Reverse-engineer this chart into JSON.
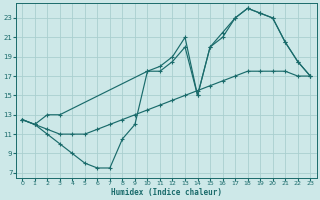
{
  "xlabel": "Humidex (Indice chaleur)",
  "xlim": [
    -0.5,
    23.5
  ],
  "ylim": [
    6.5,
    24.5
  ],
  "yticks": [
    7,
    9,
    11,
    13,
    15,
    17,
    19,
    21,
    23
  ],
  "xticks": [
    0,
    1,
    2,
    3,
    4,
    5,
    6,
    7,
    8,
    9,
    10,
    11,
    12,
    13,
    14,
    15,
    16,
    17,
    18,
    19,
    20,
    21,
    22,
    23
  ],
  "bg_color": "#cde8e8",
  "grid_color": "#aacfcf",
  "line_color": "#1a6b6b",
  "line_upper_x": [
    0,
    1,
    2,
    3,
    10,
    11,
    12,
    13,
    14,
    15,
    16,
    17,
    18,
    19,
    20,
    21,
    22,
    23
  ],
  "line_upper_y": [
    12.5,
    12,
    13,
    13,
    17.5,
    18,
    19,
    21,
    15,
    20,
    21,
    23,
    24,
    23.5,
    23,
    20.5,
    18.5,
    17
  ],
  "line_lower_x": [
    0,
    1,
    2,
    3,
    4,
    5,
    6,
    7,
    8,
    9,
    10,
    11,
    12,
    13,
    14,
    15,
    16,
    17,
    18,
    19,
    20,
    21,
    22,
    23
  ],
  "line_lower_y": [
    12.5,
    12,
    11,
    10,
    9,
    8,
    7.5,
    7.5,
    10.5,
    12,
    17.5,
    17.5,
    18.5,
    20,
    15,
    20,
    21.5,
    23,
    24,
    23.5,
    23,
    20.5,
    18.5,
    17
  ],
  "line_diag_x": [
    0,
    1,
    2,
    3,
    4,
    5,
    6,
    7,
    8,
    9,
    10,
    11,
    12,
    13,
    14,
    15,
    16,
    17,
    18,
    19,
    20,
    21,
    22,
    23
  ],
  "line_diag_y": [
    12.5,
    12,
    11.5,
    11,
    11,
    11,
    11.5,
    12,
    12.5,
    13,
    13.5,
    14,
    14.5,
    15,
    15.5,
    16,
    16.5,
    17,
    17.5,
    17.5,
    17.5,
    17.5,
    17,
    17
  ]
}
